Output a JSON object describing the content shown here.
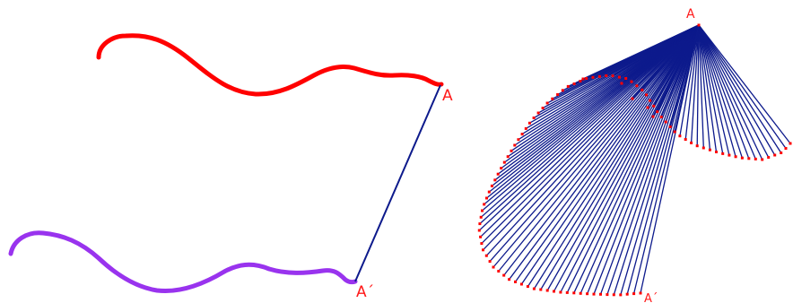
{
  "left_figure": {
    "point_label_top": "A",
    "point_label_bottom": "A´",
    "colors": {
      "upper_curve": "#ff0000",
      "lower_curve": "#9933ee",
      "segment": "#0d1a8c",
      "label": "#ff1a1a"
    }
  },
  "right_figure": {
    "apex_label": "A",
    "end_label": "A´",
    "colors": {
      "rays": "#0d1a8c",
      "endpoints": "#ff0000",
      "label": "#ff1a1a"
    }
  }
}
